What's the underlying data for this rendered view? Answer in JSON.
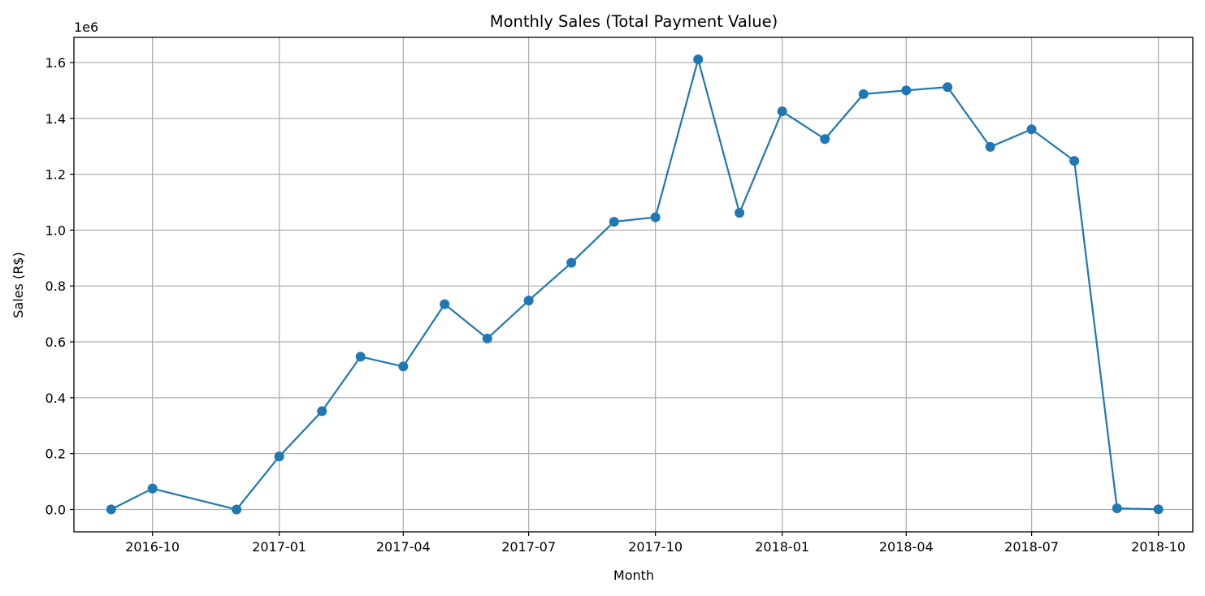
{
  "chart_data": {
    "type": "line",
    "title": "Monthly Sales (Total Payment Value)",
    "xlabel": "Month",
    "ylabel": "Sales (R$)",
    "y_offset_label": "1e6",
    "y_scale": 1000000,
    "grid": true,
    "xlim": [
      "2016-08-05",
      "2018-10-26"
    ],
    "ylim": [
      -80000,
      1690000
    ],
    "x_ticks": [
      {
        "date": "2016-10-01",
        "label": "2016-10"
      },
      {
        "date": "2017-01-01",
        "label": "2017-01"
      },
      {
        "date": "2017-04-01",
        "label": "2017-04"
      },
      {
        "date": "2017-07-01",
        "label": "2017-07"
      },
      {
        "date": "2017-10-01",
        "label": "2017-10"
      },
      {
        "date": "2018-01-01",
        "label": "2018-01"
      },
      {
        "date": "2018-04-01",
        "label": "2018-04"
      },
      {
        "date": "2018-07-01",
        "label": "2018-07"
      },
      {
        "date": "2018-10-01",
        "label": "2018-10"
      }
    ],
    "y_ticks": [
      {
        "value": 0,
        "label": "0.0"
      },
      {
        "value": 200000,
        "label": "0.2"
      },
      {
        "value": 400000,
        "label": "0.4"
      },
      {
        "value": 600000,
        "label": "0.6"
      },
      {
        "value": 800000,
        "label": "0.8"
      },
      {
        "value": 1000000,
        "label": "1.0"
      },
      {
        "value": 1200000,
        "label": "1.2"
      },
      {
        "value": 1400000,
        "label": "1.4"
      },
      {
        "value": 1600000,
        "label": "1.6"
      }
    ],
    "series": [
      {
        "color": "#1f77b4",
        "x": [
          "2016-09-01",
          "2016-10-01",
          "2016-12-01",
          "2017-01-01",
          "2017-02-01",
          "2017-03-01",
          "2017-04-01",
          "2017-05-01",
          "2017-06-01",
          "2017-07-01",
          "2017-08-01",
          "2017-09-01",
          "2017-10-01",
          "2017-11-01",
          "2017-12-01",
          "2018-01-01",
          "2018-02-01",
          "2018-03-01",
          "2018-04-01",
          "2018-05-01",
          "2018-06-01",
          "2018-07-01",
          "2018-08-01",
          "2018-09-01",
          "2018-10-01"
        ],
        "y": [
          200,
          75000,
          20,
          190000,
          352000,
          547000,
          512000,
          735000,
          612000,
          748000,
          883000,
          1030000,
          1046000,
          1611000,
          1062000,
          1425000,
          1326000,
          1487000,
          1500000,
          1512000,
          1298000,
          1361000,
          1248000,
          4400,
          600
        ]
      }
    ]
  }
}
